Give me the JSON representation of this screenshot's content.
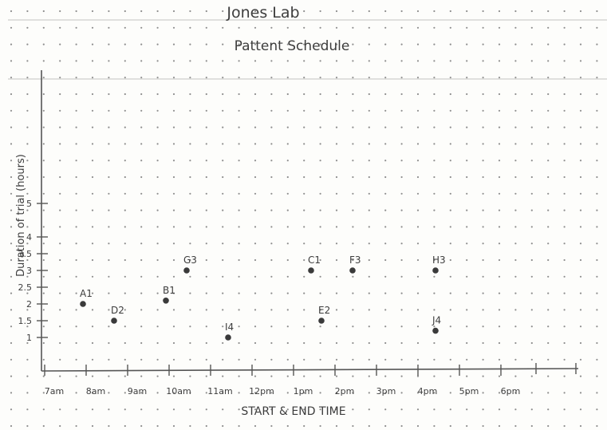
{
  "title_line1": "Jones Lab",
  "title_line2": "Pattent Schedule",
  "chart_data": {
    "type": "scatter",
    "xlabel": "START & END TIME",
    "ylabel": "Duration of trial (hours)",
    "x_ticks": [
      "7am",
      "8am",
      "9am",
      "10am",
      "11am",
      "12pm",
      "1pm",
      "2pm",
      "3pm",
      "4pm",
      "5pm",
      "6pm"
    ],
    "y_ticks": [
      {
        "label": "1",
        "value": 1
      },
      {
        "label": "1.5",
        "value": 1.5
      },
      {
        "label": "2",
        "value": 2
      },
      {
        "label": "2.5",
        "value": 2.5
      },
      {
        "label": "3",
        "value": 3
      },
      {
        "label": "3.5",
        "value": 3.5
      },
      {
        "label": "4",
        "value": 4
      },
      {
        "label": "5",
        "value": 5
      }
    ],
    "xlim": [
      "7am",
      "8pm"
    ],
    "ylim": [
      0,
      6
    ],
    "grid": false,
    "points": [
      {
        "label": "A1",
        "x": "8am",
        "y": 2
      },
      {
        "label": "D2",
        "x": "8:45am",
        "y": 1.5
      },
      {
        "label": "B1",
        "x": "10am",
        "y": 2.1
      },
      {
        "label": "G3",
        "x": "10:30am",
        "y": 3
      },
      {
        "label": "I4",
        "x": "11:30am",
        "y": 1
      },
      {
        "label": "C1",
        "x": "1:30pm",
        "y": 3
      },
      {
        "label": "E2",
        "x": "1:45pm",
        "y": 1.5
      },
      {
        "label": "F3",
        "x": "2:30pm",
        "y": 3
      },
      {
        "label": "H3",
        "x": "4:30pm",
        "y": 3
      },
      {
        "label": "J4",
        "x": "4:30pm",
        "y": 1.2
      }
    ]
  }
}
